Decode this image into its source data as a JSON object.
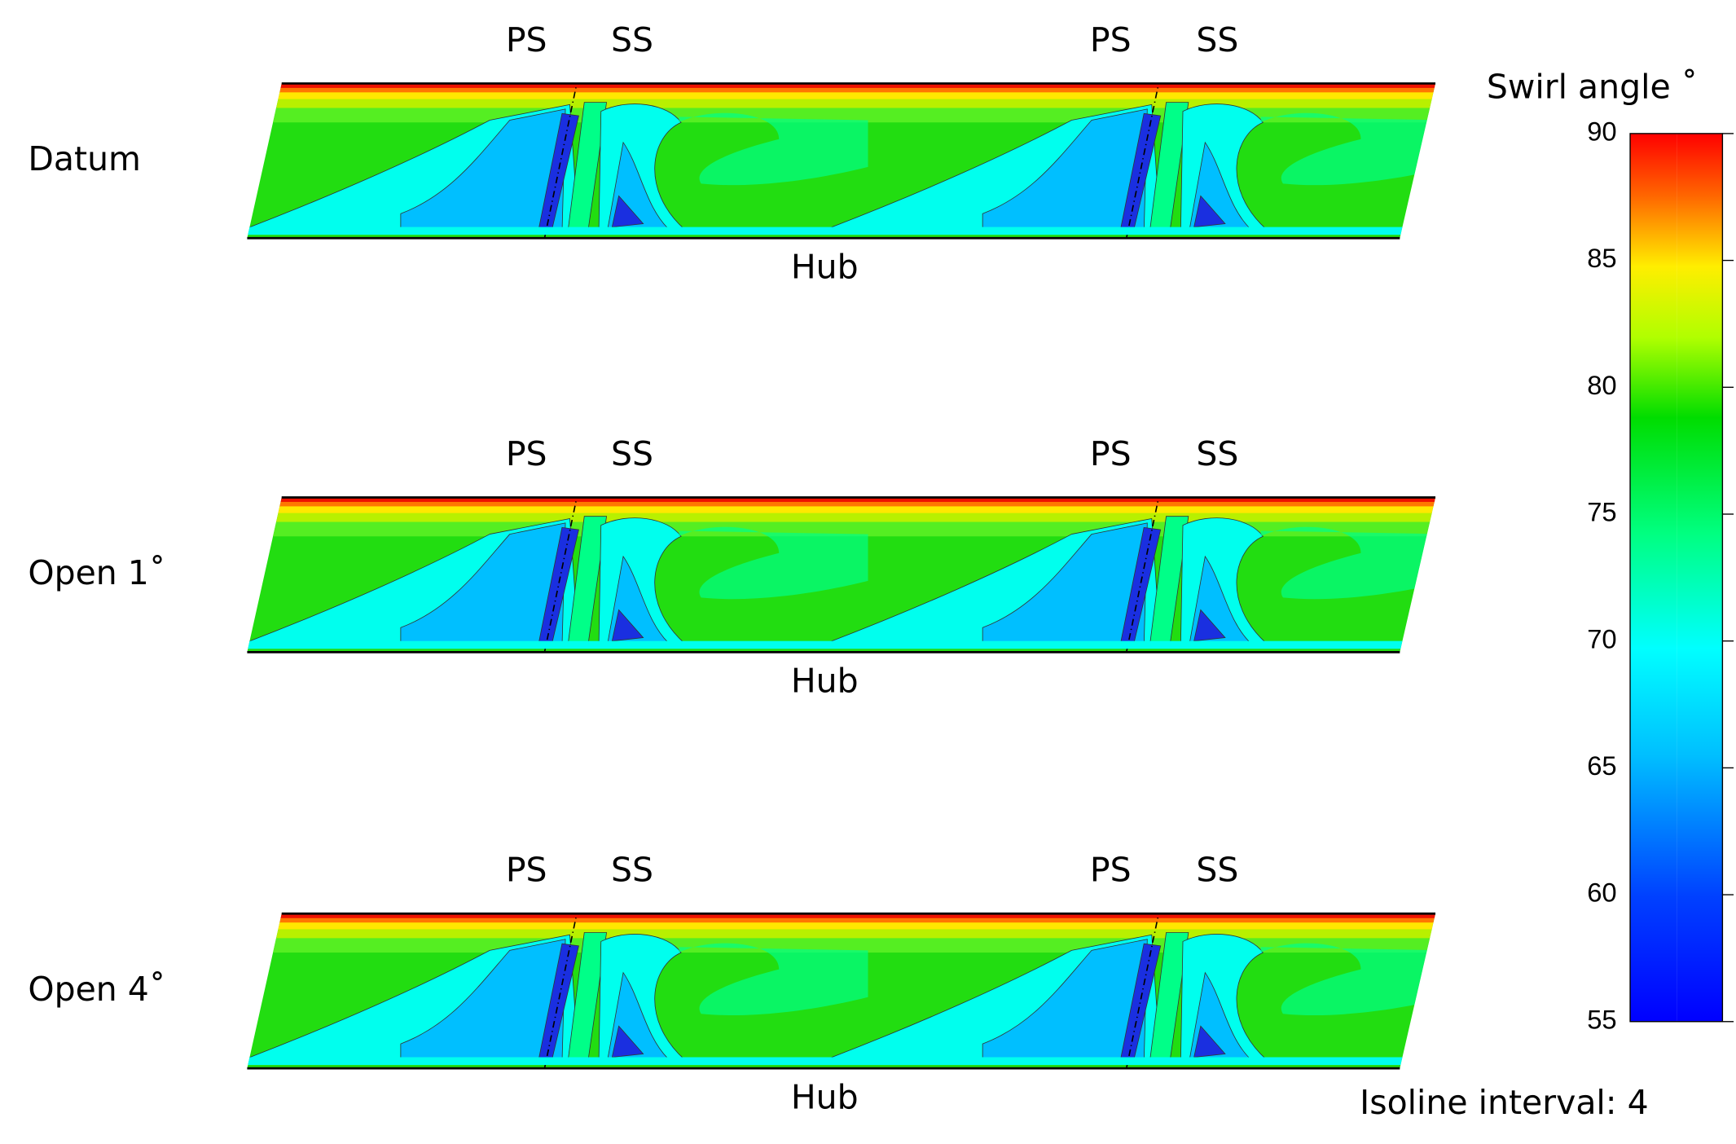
{
  "panels": [
    {
      "label": "Datum",
      "blade_labels": [
        "PS",
        "SS",
        "PS",
        "SS"
      ],
      "hub_label": "Hub"
    },
    {
      "label": "Open 1˚",
      "blade_labels": [
        "PS",
        "SS",
        "PS",
        "SS"
      ],
      "hub_label": "Hub"
    },
    {
      "label": "Open 4˚",
      "blade_labels": [
        "PS",
        "SS",
        "PS",
        "SS"
      ],
      "hub_label": "Hub"
    }
  ],
  "colorbar": {
    "title": "Swirl angle ˚",
    "lim": [
      55,
      90
    ],
    "ticks": [
      55,
      60,
      65,
      70,
      75,
      80,
      85,
      90
    ]
  },
  "note": "Isoline interval: 4"
}
